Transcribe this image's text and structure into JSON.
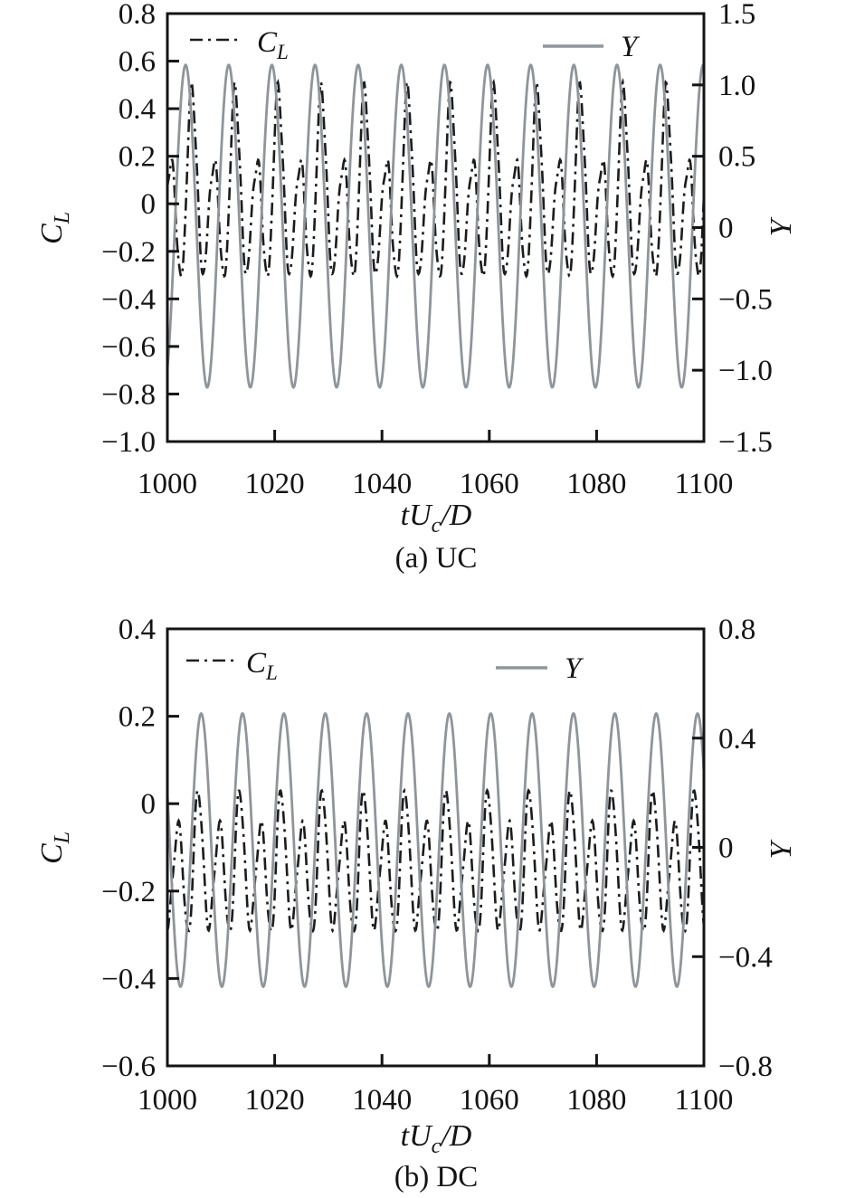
{
  "figure": {
    "background": "#ffffff",
    "colors": {
      "cl_line": "#1c1c1c",
      "y_line": "#8f959a",
      "frame": "#141414"
    }
  },
  "chart_data": [
    {
      "type": "line",
      "caption": "(a) UC",
      "xlabel": "tU_c/D",
      "xlabel_display": {
        "base": "tU",
        "sub": "c",
        "rest": "/D"
      },
      "x_axis": {
        "lim": [
          1000,
          1100
        ],
        "ticks": [
          {
            "v": 1000,
            "label": "1000"
          },
          {
            "v": 1020,
            "label": "1020"
          },
          {
            "v": 1040,
            "label": "1040"
          },
          {
            "v": 1060,
            "label": "1060"
          },
          {
            "v": 1080,
            "label": "1080"
          },
          {
            "v": 1100,
            "label": "1100"
          }
        ]
      },
      "left_axis": {
        "label": "C_L",
        "label_main": "C",
        "label_sub": "L",
        "lim": [
          -1.0,
          0.8
        ],
        "ticks": [
          {
            "v": 0.8,
            "label": "0.8"
          },
          {
            "v": 0.6,
            "label": "0.6"
          },
          {
            "v": 0.4,
            "label": "0.4"
          },
          {
            "v": 0.2,
            "label": "0.2"
          },
          {
            "v": 0,
            "label": "0"
          },
          {
            "v": -0.2,
            "label": "−0.2"
          },
          {
            "v": -0.4,
            "label": "−0.4"
          },
          {
            "v": -0.6,
            "label": "−0.6"
          },
          {
            "v": -0.8,
            "label": "−0.8"
          },
          {
            "v": -1.0,
            "label": "−1.0"
          }
        ]
      },
      "right_axis": {
        "label": "Y",
        "lim": [
          -1.5,
          1.5
        ],
        "ticks": [
          {
            "v": 1.5,
            "label": "1.5"
          },
          {
            "v": 1.0,
            "label": "1.0"
          },
          {
            "v": 0.5,
            "label": "0.5"
          },
          {
            "v": 0,
            "label": "0"
          },
          {
            "v": -0.5,
            "label": "−0.5"
          },
          {
            "v": -1.0,
            "label": "−1.0"
          },
          {
            "v": -1.5,
            "label": "−1.5"
          }
        ]
      },
      "legend": {
        "cl_main": "C",
        "cl_sub": "L",
        "y_label": "Y"
      },
      "grid": false,
      "legend_frame": false,
      "series": [
        {
          "name": "C_L",
          "axis": "left",
          "style": "dash-dot",
          "color": "#1c1c1c",
          "dash": "14 6 3 6",
          "width": 2.6,
          "waveform": {
            "kind": "harmonic",
            "period": 8.04,
            "peak_t": 1004.6,
            "mean": 0.015,
            "harmonics": [
              {
                "n": 1,
                "amp": 0.13
              },
              {
                "n": 2,
                "amp": 0.315
              },
              {
                "n": 3,
                "amp": 0.03,
                "ph": 0.5
              },
              {
                "n": 5,
                "amp": 0.02,
                "ph": 1.3
              },
              {
                "n": 7,
                "amp": 0.015,
                "ph": 0.7
              }
            ],
            "approx_max": 0.46,
            "approx_min": -0.32
          }
        },
        {
          "name": "Y",
          "axis": "right",
          "style": "solid",
          "color": "#8f959a",
          "dash": "",
          "width": 2.8,
          "waveform": {
            "kind": "sine",
            "period": 8.04,
            "peak_t": 1003.4,
            "mean": 0.01,
            "amp": 1.13,
            "approx_max": 1.14,
            "approx_min": -1.12
          }
        }
      ]
    },
    {
      "type": "line",
      "caption": "(b) DC",
      "xlabel": "tU_c/D",
      "xlabel_display": {
        "base": "tU",
        "sub": "c",
        "rest": "/D"
      },
      "x_axis": {
        "lim": [
          1000,
          1100
        ],
        "ticks": [
          {
            "v": 1000,
            "label": "1000"
          },
          {
            "v": 1020,
            "label": "1020"
          },
          {
            "v": 1040,
            "label": "1040"
          },
          {
            "v": 1060,
            "label": "1060"
          },
          {
            "v": 1080,
            "label": "1080"
          },
          {
            "v": 1100,
            "label": "1100"
          }
        ]
      },
      "left_axis": {
        "label": "C_L",
        "label_main": "C",
        "label_sub": "L",
        "lim": [
          -0.6,
          0.4
        ],
        "ticks": [
          {
            "v": 0.4,
            "label": "0.4"
          },
          {
            "v": 0.2,
            "label": "0.2"
          },
          {
            "v": 0,
            "label": "0"
          },
          {
            "v": -0.2,
            "label": "−0.2"
          },
          {
            "v": -0.4,
            "label": "−0.4"
          },
          {
            "v": -0.6,
            "label": "−0.6"
          }
        ]
      },
      "right_axis": {
        "label": "Y",
        "lim": [
          -0.8,
          0.8
        ],
        "ticks": [
          {
            "v": 0.8,
            "label": "0.8"
          },
          {
            "v": 0.4,
            "label": "0.4"
          },
          {
            "v": 0,
            "label": "0"
          },
          {
            "v": -0.4,
            "label": "−0.4"
          },
          {
            "v": -0.8,
            "label": "−0.8"
          }
        ]
      },
      "legend": {
        "cl_main": "C",
        "cl_sub": "L",
        "y_label": "Y"
      },
      "grid": false,
      "legend_frame": false,
      "series": [
        {
          "name": "C_L",
          "axis": "left",
          "style": "dash-dot",
          "color": "#1c1c1c",
          "dash": "14 6 3 6",
          "width": 2.6,
          "waveform": {
            "kind": "harmonic",
            "period": 7.71,
            "peak_t": 1005.8,
            "mean": -0.15,
            "harmonics": [
              {
                "n": 1,
                "amp": 0.03
              },
              {
                "n": 2,
                "amp": 0.14
              },
              {
                "n": 3,
                "amp": 0.015,
                "ph": 0.8
              },
              {
                "n": 5,
                "amp": 0.012,
                "ph": 2.1
              }
            ],
            "approx_max": 0.02,
            "approx_min": -0.3
          }
        },
        {
          "name": "Y",
          "axis": "right",
          "style": "solid",
          "color": "#8f959a",
          "dash": "",
          "width": 2.8,
          "waveform": {
            "kind": "sine",
            "period": 7.71,
            "peak_t": 1006.3,
            "mean": -0.01,
            "amp": 0.5,
            "approx_max": 0.49,
            "approx_min": -0.51
          }
        }
      ]
    }
  ]
}
